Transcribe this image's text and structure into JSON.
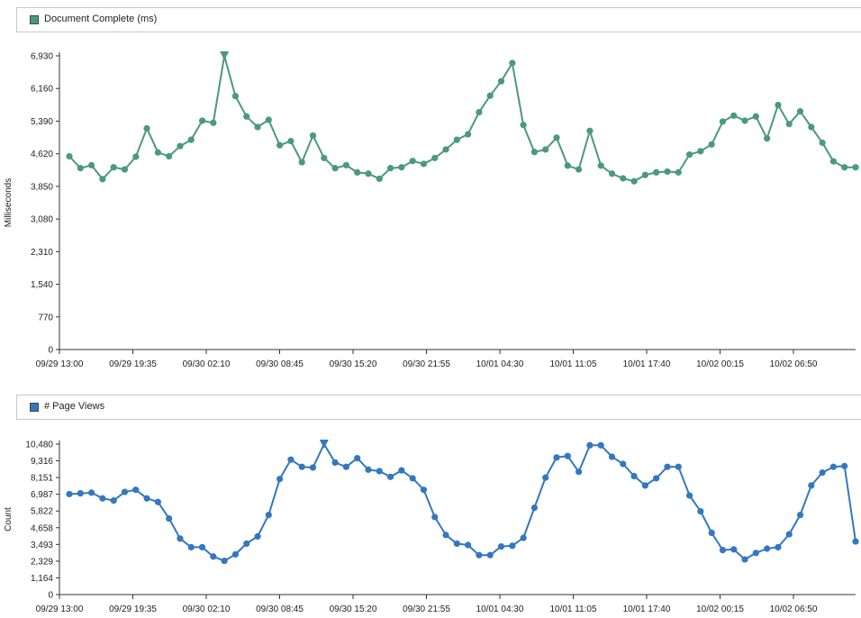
{
  "chart_data": [
    {
      "type": "line",
      "legend": "Document Complete (ms)",
      "ylabel": "Milliseconds",
      "xlabel": "",
      "color": "#4a9a78",
      "ylim": [
        0,
        6930
      ],
      "yticks": [
        "6,930",
        "6,160",
        "5,390",
        "4,620",
        "3,850",
        "3,080",
        "2,310",
        "1,540",
        "770",
        "0"
      ],
      "ytick_values": [
        6930,
        6160,
        5390,
        4620,
        3850,
        3080,
        2310,
        1540,
        770,
        0
      ],
      "xticks": [
        "09/29 13:00",
        "09/29 19:35",
        "09/30 02:10",
        "09/30 08:45",
        "09/30 15:20",
        "09/30 21:55",
        "10/01 04:30",
        "10/01 11:05",
        "10/01 17:40",
        "10/02 00:15",
        "10/02 06:50"
      ],
      "series": [
        {
          "values": [
            4560,
            4280,
            4350,
            4020,
            4300,
            4250,
            4550,
            5220,
            4650,
            4560,
            4800,
            4950,
            5400,
            5350,
            6930,
            5980,
            5500,
            5250,
            5420,
            4820,
            4920,
            4420,
            5050,
            4520,
            4280,
            4350,
            4180,
            4150,
            4030,
            4280,
            4300,
            4450,
            4380,
            4520,
            4720,
            4950,
            5080,
            5600,
            5990,
            6330,
            6760,
            5300,
            4660,
            4720,
            5000,
            4340,
            4250,
            5160,
            4340,
            4150,
            4040,
            3970,
            4120,
            4180,
            4200,
            4180,
            4600,
            4680,
            4840,
            5380,
            5520,
            5400,
            5500,
            4980,
            5770,
            5320,
            5620,
            5250,
            4880,
            4440,
            4300,
            4300
          ]
        }
      ]
    },
    {
      "type": "line",
      "legend": "# Page Views",
      "ylabel": "Count",
      "xlabel": "",
      "color": "#3378bf",
      "ylim": [
        0,
        10480
      ],
      "yticks": [
        "10,480",
        "9,316",
        "8,151",
        "6,987",
        "5,822",
        "4,658",
        "3,493",
        "2,329",
        "1,164",
        "0"
      ],
      "ytick_values": [
        10480,
        9316,
        8151,
        6987,
        5822,
        4658,
        3493,
        2329,
        1164,
        0
      ],
      "xticks": [
        "09/29 13:00",
        "09/29 19:35",
        "09/30 02:10",
        "09/30 08:45",
        "09/30 15:20",
        "09/30 21:55",
        "10/01 04:30",
        "10/01 11:05",
        "10/01 17:40",
        "10/02 00:15",
        "10/02 06:50"
      ],
      "series": [
        {
          "values": [
            7000,
            7050,
            7100,
            6700,
            6550,
            7150,
            7300,
            6700,
            6450,
            5300,
            3900,
            3300,
            3300,
            2650,
            2350,
            2800,
            3550,
            4050,
            5550,
            8050,
            9400,
            8900,
            8850,
            10480,
            9200,
            8900,
            9500,
            8700,
            8600,
            8200,
            8650,
            8100,
            7300,
            5400,
            4150,
            3550,
            3450,
            2750,
            2750,
            3350,
            3400,
            3950,
            6050,
            8150,
            9550,
            9650,
            8550,
            10400,
            10400,
            9600,
            9100,
            8250,
            7600,
            8100,
            8900,
            8900,
            6900,
            5800,
            4300,
            3100,
            3150,
            2450,
            2900,
            3200,
            3300,
            4200,
            5550,
            7600,
            8500,
            8900,
            8950,
            3700
          ]
        }
      ]
    }
  ]
}
